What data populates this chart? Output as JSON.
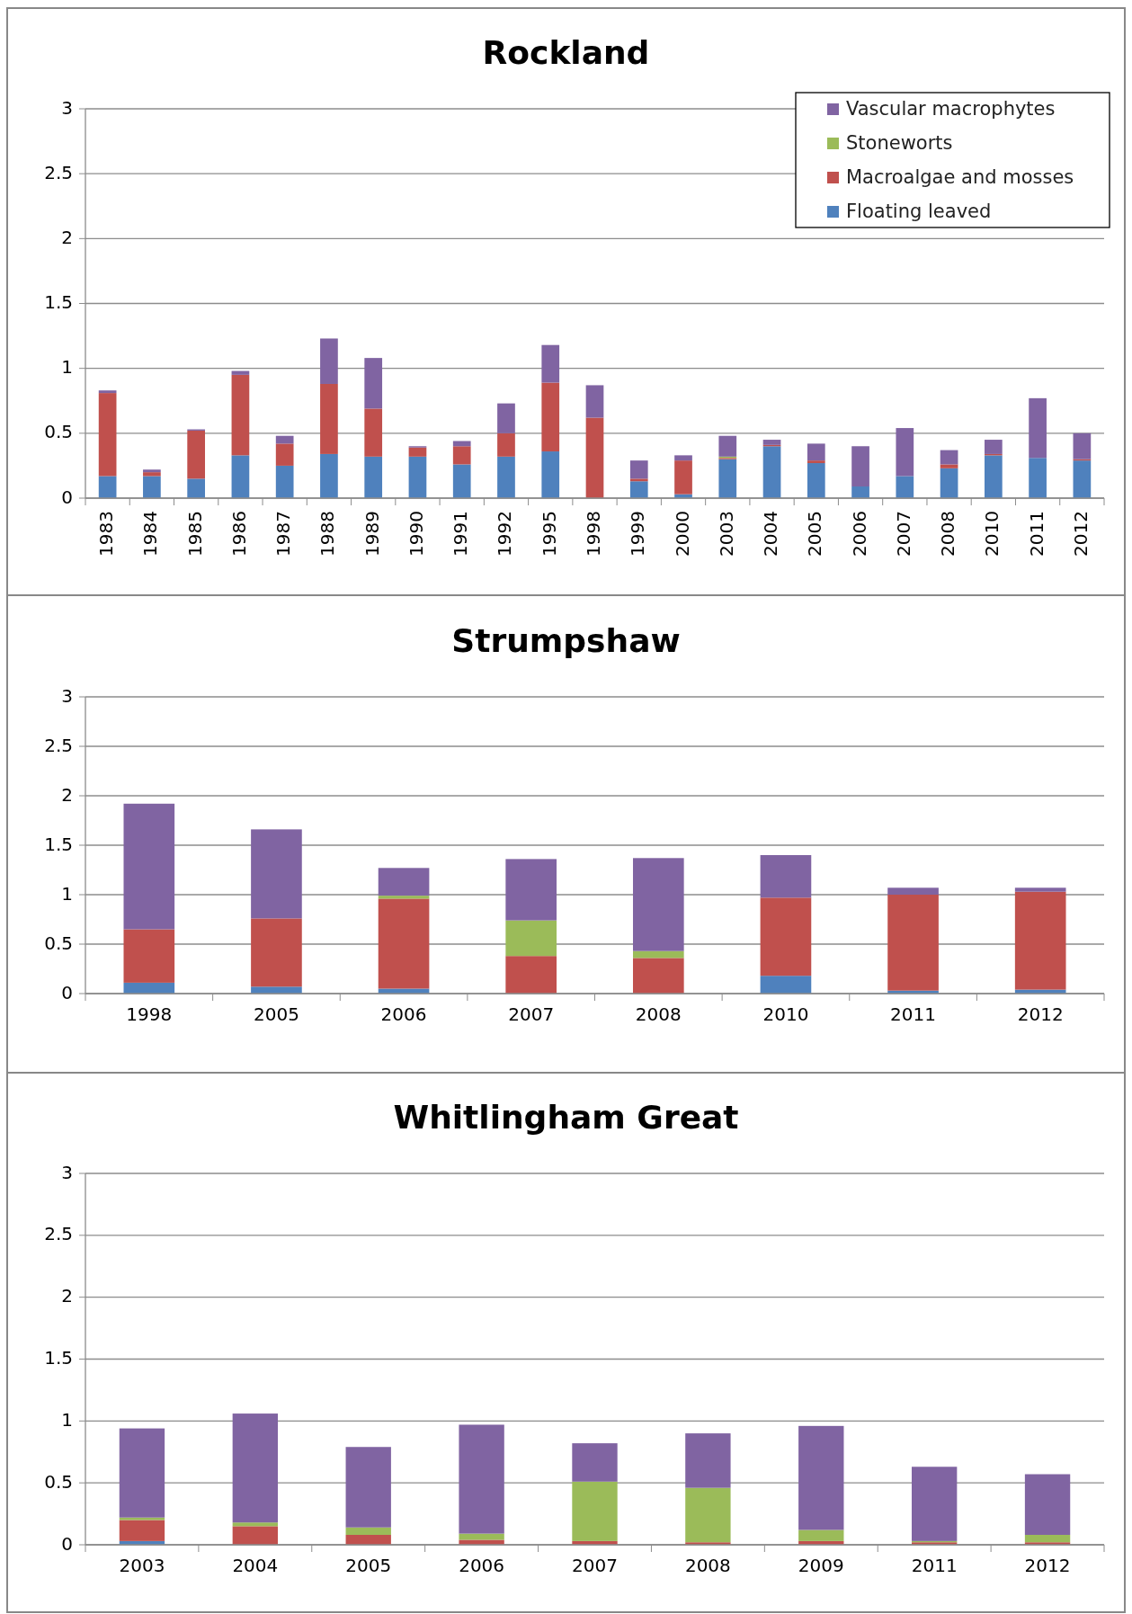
{
  "chart_data": [
    {
      "type": "bar",
      "title": "Rockland",
      "stacked": true,
      "grid": "y",
      "legend": "top right",
      "categories": [
        "1983",
        "1984",
        "1985",
        "1986",
        "1987",
        "1988",
        "1989",
        "1990",
        "1991",
        "1992",
        "1995",
        "1998",
        "1999",
        "2000",
        "2003",
        "2004",
        "2005",
        "2006",
        "2007",
        "2008",
        "2010",
        "2011",
        "2012"
      ],
      "ylim": [
        0,
        3
      ],
      "yticks": [
        0,
        0.5,
        1,
        1.5,
        2,
        2.5,
        3
      ],
      "series": [
        {
          "name": "Floating leaved",
          "color": "#4f81bd",
          "values": [
            0.17,
            0.17,
            0.15,
            0.33,
            0.25,
            0.34,
            0.32,
            0.32,
            0.26,
            0.32,
            0.36,
            0,
            0.13,
            0.03,
            0.3,
            0.4,
            0.27,
            0.09,
            0.17,
            0.23,
            0.33,
            0.31,
            0.29
          ]
        },
        {
          "name": "Macroalgae and mosses",
          "color": "#c0504d",
          "values": [
            0.64,
            0.03,
            0.37,
            0.62,
            0.17,
            0.54,
            0.37,
            0.07,
            0.14,
            0.18,
            0.53,
            0.62,
            0.02,
            0.26,
            0.01,
            0.01,
            0.02,
            0,
            0,
            0.03,
            0.01,
            0,
            0.01
          ]
        },
        {
          "name": "Stoneworts",
          "color": "#9bbb59",
          "values": [
            0,
            0,
            0,
            0,
            0,
            0,
            0,
            0,
            0,
            0,
            0,
            0,
            0,
            0,
            0.01,
            0,
            0,
            0,
            0,
            0,
            0,
            0,
            0
          ]
        },
        {
          "name": "Vascular macrophytes",
          "color": "#8064a2",
          "values": [
            0.02,
            0.02,
            0.01,
            0.03,
            0.06,
            0.35,
            0.39,
            0.01,
            0.04,
            0.23,
            0.29,
            0.25,
            0.14,
            0.04,
            0.16,
            0.04,
            0.13,
            0.31,
            0.37,
            0.11,
            0.11,
            0.46,
            0.2
          ]
        }
      ]
    },
    {
      "type": "bar",
      "title": "Strumpshaw",
      "stacked": true,
      "grid": "y",
      "categories": [
        "1998",
        "2005",
        "2006",
        "2007",
        "2008",
        "2010",
        "2011",
        "2012"
      ],
      "ylim": [
        0,
        3
      ],
      "yticks": [
        0,
        0.5,
        1,
        1.5,
        2,
        2.5,
        3
      ],
      "series": [
        {
          "color": "#4f81bd",
          "values": [
            0.11,
            0.07,
            0.05,
            0,
            0,
            0.18,
            0.03,
            0.04
          ]
        },
        {
          "color": "#c0504d",
          "values": [
            0.54,
            0.69,
            0.91,
            0.38,
            0.36,
            0.79,
            0.97,
            0.99
          ]
        },
        {
          "color": "#9bbb59",
          "values": [
            0,
            0,
            0.03,
            0.36,
            0.07,
            0,
            0,
            0
          ]
        },
        {
          "color": "#8064a2",
          "values": [
            1.27,
            0.9,
            0.28,
            0.62,
            0.94,
            0.43,
            0.07,
            0.04
          ]
        }
      ]
    },
    {
      "type": "bar",
      "title": "Whitlingham Great",
      "stacked": true,
      "grid": "y",
      "categories": [
        "2003",
        "2004",
        "2005",
        "2006",
        "2007",
        "2008",
        "2009",
        "2011",
        "2012"
      ],
      "ylim": [
        0,
        3
      ],
      "yticks": [
        0,
        0.5,
        1,
        1.5,
        2,
        2.5,
        3
      ],
      "series": [
        {
          "color": "#4f81bd",
          "values": [
            0.03,
            0,
            0,
            0,
            0,
            0,
            0,
            0,
            0
          ]
        },
        {
          "color": "#c0504d",
          "values": [
            0.17,
            0.15,
            0.08,
            0.04,
            0.03,
            0.02,
            0.03,
            0.02,
            0.02
          ]
        },
        {
          "color": "#9bbb59",
          "values": [
            0.02,
            0.03,
            0.06,
            0.05,
            0.48,
            0.44,
            0.09,
            0.01,
            0.06
          ]
        },
        {
          "color": "#8064a2",
          "values": [
            0.72,
            0.88,
            0.65,
            0.88,
            0.31,
            0.44,
            0.84,
            0.6,
            0.49
          ]
        }
      ]
    }
  ]
}
